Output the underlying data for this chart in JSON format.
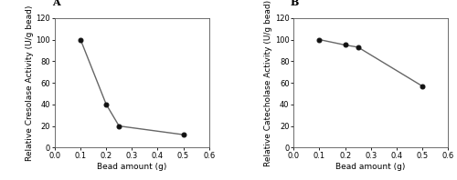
{
  "panel_A": {
    "label": "A",
    "x": [
      0.1,
      0.2,
      0.25,
      0.5
    ],
    "y": [
      100,
      40,
      20,
      12
    ],
    "xlabel": "Bead amount (g)",
    "ylabel": "Relative Cresolase Activity (U/g bead)",
    "xlim": [
      0,
      0.6
    ],
    "ylim": [
      0,
      120
    ],
    "xticks": [
      0.0,
      0.1,
      0.2,
      0.3,
      0.4,
      0.5,
      0.6
    ],
    "yticks": [
      0,
      20,
      40,
      60,
      80,
      100,
      120
    ]
  },
  "panel_B": {
    "label": "B",
    "x": [
      0.1,
      0.2,
      0.25,
      0.5
    ],
    "y": [
      100,
      95,
      93,
      57
    ],
    "xlabel": "Bead amount (g)",
    "ylabel": "Relative Catecholase Activity (U/g bead)",
    "xlim": [
      0,
      0.6
    ],
    "ylim": [
      0,
      120
    ],
    "xticks": [
      0.0,
      0.1,
      0.2,
      0.3,
      0.4,
      0.5,
      0.6
    ],
    "yticks": [
      0,
      20,
      40,
      60,
      80,
      100,
      120
    ]
  },
  "line_color": "#666666",
  "marker": "o",
  "marker_color": "#111111",
  "marker_size": 3.5,
  "marker_face": "#111111",
  "line_width": 1.0,
  "font_size_label": 6.5,
  "font_size_tick": 6.0,
  "font_size_panel_label": 8,
  "background_color": "#ffffff"
}
